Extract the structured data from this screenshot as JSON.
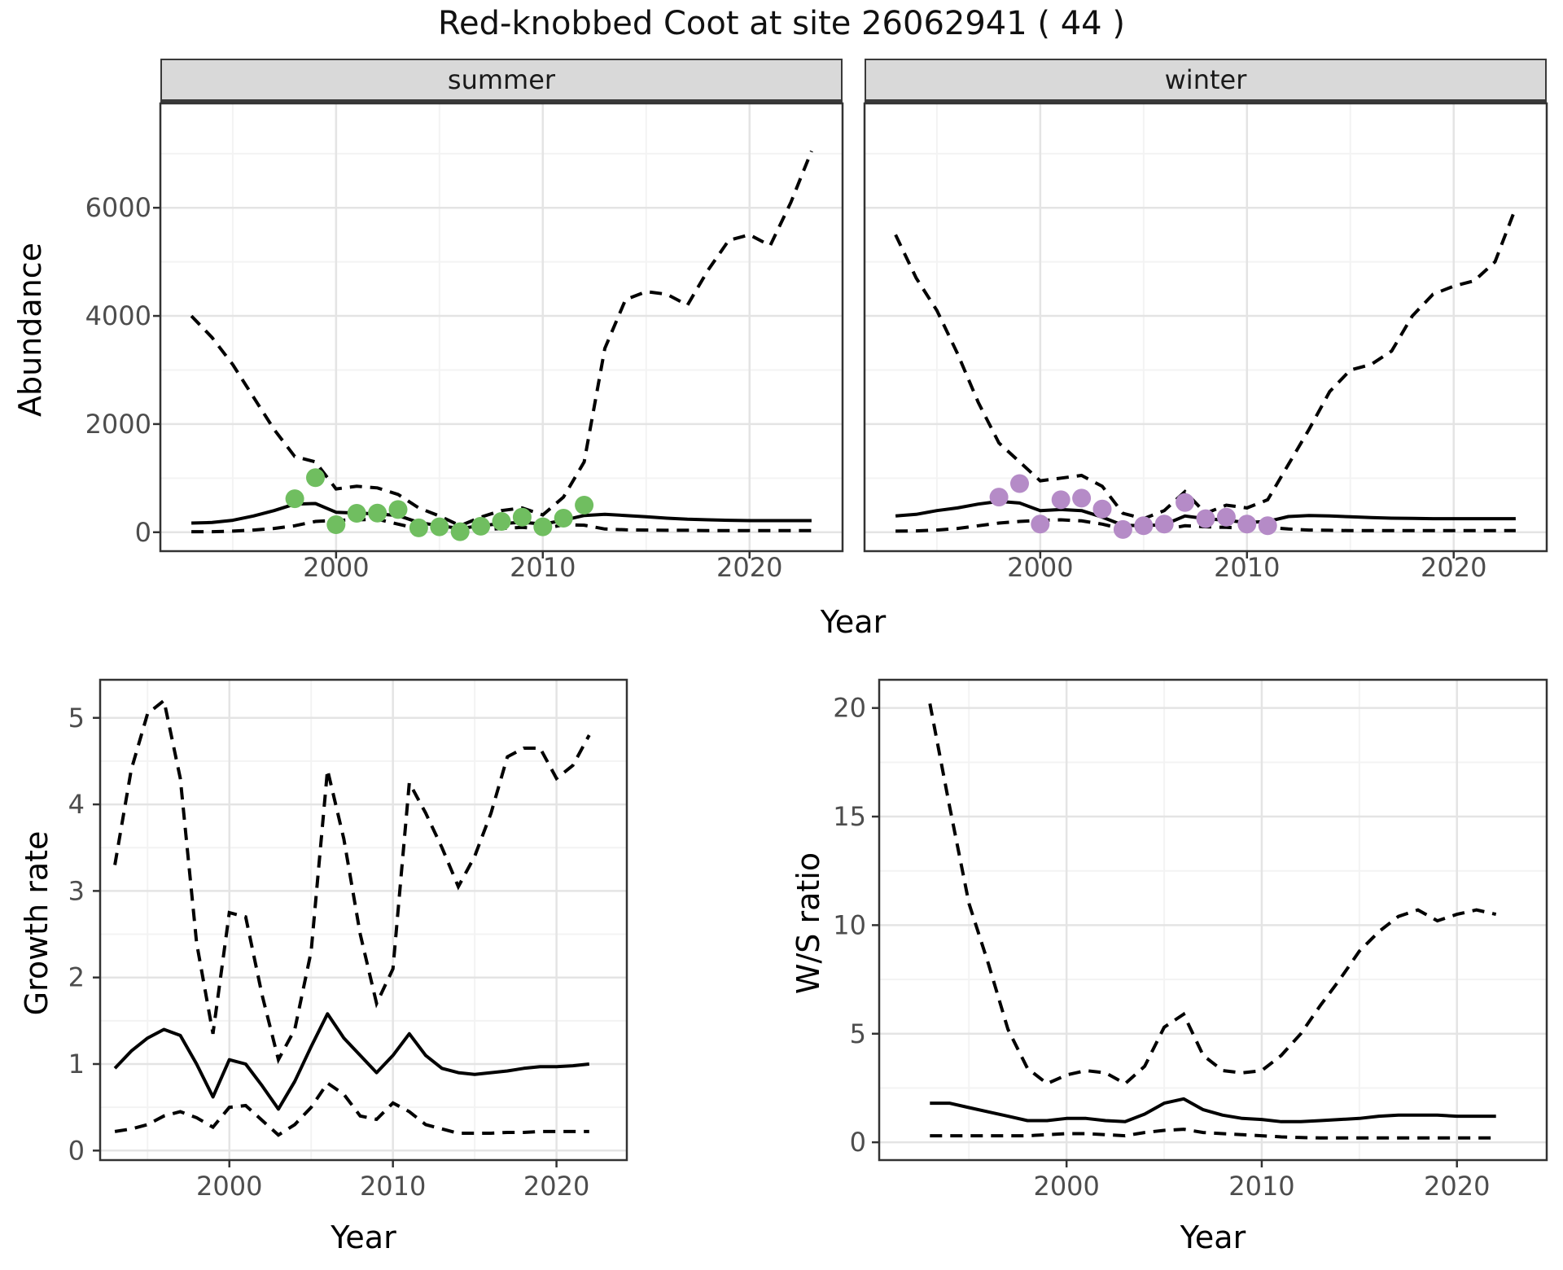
{
  "title": "Red-knobbed Coot at site 26062941 ( 44 )",
  "facets": {
    "summer": "summer",
    "winter": "winter"
  },
  "axis_titles": {
    "abundance": "Abundance",
    "year_top": "Year",
    "growth_rate": "Growth rate",
    "ws_ratio": "W/S ratio",
    "year_bottom_left": "Year",
    "year_bottom_right": "Year"
  },
  "colors": {
    "summer_point": "#70BE60",
    "winter_point": "#B58BC7",
    "line": "#000000",
    "grid_major": "#E4E4E4",
    "grid_minor": "#F3F3F3",
    "panel_border": "#333333",
    "strip_bg": "#D9D9D9",
    "tick_label": "#4D4D4D"
  },
  "chart_data": [
    {
      "id": "abundance_summer",
      "type": "line",
      "facet": "summer",
      "xlabel": "Year",
      "ylabel": "Abundance",
      "xlim": [
        1991.5,
        2024.5
      ],
      "ylim": [
        -350,
        7930
      ],
      "grid": true,
      "xticks": {
        "major": [
          2000,
          2010,
          2020
        ],
        "minor": [
          1995,
          2005,
          2015
        ]
      },
      "yticks": {
        "major": [
          0,
          2000,
          4000,
          6000
        ],
        "minor": [
          1000,
          3000,
          5000,
          7000
        ]
      },
      "x": [
        1993,
        1994,
        1995,
        1996,
        1997,
        1998,
        1999,
        2000,
        2001,
        2002,
        2003,
        2004,
        2005,
        2006,
        2007,
        2008,
        2009,
        2010,
        2011,
        2012,
        2013,
        2014,
        2015,
        2016,
        2017,
        2018,
        2019,
        2020,
        2021,
        2022,
        2023
      ],
      "series": [
        {
          "name": "upper_ci",
          "style": "dashed",
          "values": [
            4000,
            3600,
            3100,
            2500,
            1900,
            1400,
            1300,
            800,
            850,
            820,
            700,
            450,
            300,
            120,
            280,
            400,
            450,
            320,
            650,
            1300,
            3400,
            4300,
            4450,
            4400,
            4200,
            4850,
            5400,
            5500,
            5300,
            6100,
            7050
          ]
        },
        {
          "name": "estimate",
          "style": "solid",
          "values": [
            170,
            180,
            220,
            300,
            400,
            520,
            530,
            370,
            355,
            340,
            310,
            180,
            120,
            70,
            120,
            160,
            185,
            150,
            220,
            310,
            330,
            310,
            285,
            260,
            240,
            230,
            220,
            215,
            215,
            215,
            215
          ]
        },
        {
          "name": "lower_ci",
          "style": "dashed",
          "values": [
            10,
            10,
            20,
            40,
            70,
            120,
            200,
            220,
            230,
            240,
            150,
            60,
            25,
            10,
            40,
            70,
            90,
            60,
            140,
            130,
            60,
            45,
            40,
            35,
            35,
            30,
            30,
            30,
            30,
            30,
            30
          ]
        }
      ],
      "points": {
        "name": "observed_counts_summer",
        "color_key": "summer_point",
        "x": [
          1998,
          1999,
          2000,
          2001,
          2002,
          2003,
          2004,
          2005,
          2006,
          2007,
          2008,
          2009,
          2010,
          2011,
          2012
        ],
        "y": [
          620,
          1010,
          140,
          350,
          355,
          420,
          80,
          100,
          10,
          110,
          200,
          280,
          100,
          260,
          500
        ]
      }
    },
    {
      "id": "abundance_winter",
      "type": "line",
      "facet": "winter",
      "xlabel": "Year",
      "ylabel": "Abundance",
      "xlim": [
        1991.5,
        2024.5
      ],
      "ylim": [
        -350,
        7930
      ],
      "grid": true,
      "xticks": {
        "major": [
          2000,
          2010,
          2020
        ],
        "minor": [
          1995,
          2005,
          2015
        ]
      },
      "yticks": {
        "major": [
          0,
          2000,
          4000,
          6000
        ],
        "minor": [
          1000,
          3000,
          5000,
          7000
        ]
      },
      "x": [
        1993,
        1994,
        1995,
        1996,
        1997,
        1998,
        1999,
        2000,
        2001,
        2002,
        2003,
        2004,
        2005,
        2006,
        2007,
        2008,
        2009,
        2010,
        2011,
        2012,
        2013,
        2014,
        2015,
        2016,
        2017,
        2018,
        2019,
        2020,
        2021,
        2022,
        2023
      ],
      "series": [
        {
          "name": "upper_ci",
          "style": "dashed",
          "values": [
            5500,
            4700,
            4100,
            3300,
            2400,
            1650,
            1300,
            950,
            1000,
            1050,
            850,
            350,
            250,
            400,
            750,
            350,
            500,
            450,
            600,
            1250,
            1900,
            2600,
            3000,
            3100,
            3350,
            4000,
            4400,
            4550,
            4650,
            5000,
            6000
          ]
        },
        {
          "name": "estimate",
          "style": "solid",
          "values": [
            300,
            330,
            400,
            450,
            520,
            570,
            540,
            400,
            420,
            400,
            280,
            130,
            120,
            140,
            300,
            250,
            220,
            180,
            200,
            290,
            310,
            300,
            285,
            270,
            260,
            255,
            250,
            250,
            250,
            250,
            250
          ]
        },
        {
          "name": "lower_ci",
          "style": "dashed",
          "values": [
            20,
            25,
            40,
            70,
            120,
            170,
            200,
            220,
            230,
            210,
            150,
            60,
            40,
            50,
            120,
            100,
            90,
            70,
            90,
            60,
            40,
            35,
            30,
            30,
            30,
            30,
            30,
            30,
            30,
            30,
            30
          ]
        }
      ],
      "points": {
        "name": "observed_counts_winter",
        "color_key": "winter_point",
        "x": [
          1998,
          1999,
          2000,
          2001,
          2002,
          2003,
          2004,
          2005,
          2006,
          2007,
          2008,
          2009,
          2010,
          2011
        ],
        "y": [
          650,
          900,
          150,
          600,
          630,
          430,
          50,
          120,
          150,
          550,
          250,
          280,
          150,
          120
        ]
      }
    },
    {
      "id": "growth_rate",
      "type": "line",
      "xlabel": "Year",
      "ylabel": "Growth rate",
      "xlim": [
        1992.1,
        2024.3
      ],
      "ylim": [
        -0.11,
        5.44
      ],
      "grid": true,
      "xticks": {
        "major": [
          2000,
          2010,
          2020
        ],
        "minor": [
          1995,
          2005,
          2015
        ]
      },
      "yticks": {
        "major": [
          0,
          1,
          2,
          3,
          4,
          5
        ],
        "minor": [
          0.5,
          1.5,
          2.5,
          3.5,
          4.5
        ]
      },
      "x": [
        1993,
        1994,
        1995,
        1996,
        1997,
        1998,
        1999,
        2000,
        2001,
        2002,
        2003,
        2004,
        2005,
        2006,
        2007,
        2008,
        2009,
        2010,
        2011,
        2012,
        2013,
        2014,
        2015,
        2016,
        2017,
        2018,
        2019,
        2020,
        2021,
        2022
      ],
      "series": [
        {
          "name": "upper_ci",
          "style": "dashed",
          "values": [
            3.3,
            4.4,
            5.05,
            5.2,
            4.3,
            2.4,
            1.35,
            2.75,
            2.7,
            1.8,
            1.05,
            1.4,
            2.3,
            4.4,
            3.6,
            2.5,
            1.7,
            2.1,
            4.25,
            3.9,
            3.5,
            3.05,
            3.4,
            3.9,
            4.55,
            4.65,
            4.65,
            4.3,
            4.45,
            4.8
          ]
        },
        {
          "name": "estimate",
          "style": "solid",
          "values": [
            0.95,
            1.15,
            1.3,
            1.4,
            1.33,
            1.0,
            0.62,
            1.05,
            1.0,
            0.75,
            0.48,
            0.8,
            1.2,
            1.58,
            1.3,
            1.1,
            0.9,
            1.1,
            1.35,
            1.1,
            0.95,
            0.9,
            0.88,
            0.9,
            0.92,
            0.95,
            0.97,
            0.97,
            0.98,
            1.0
          ]
        },
        {
          "name": "lower_ci",
          "style": "dashed",
          "values": [
            0.22,
            0.25,
            0.3,
            0.4,
            0.45,
            0.38,
            0.27,
            0.5,
            0.52,
            0.35,
            0.18,
            0.3,
            0.5,
            0.78,
            0.65,
            0.4,
            0.36,
            0.55,
            0.45,
            0.3,
            0.25,
            0.2,
            0.2,
            0.2,
            0.21,
            0.21,
            0.22,
            0.22,
            0.22,
            0.22
          ]
        }
      ]
    },
    {
      "id": "ws_ratio",
      "type": "line",
      "xlabel": "Year",
      "ylabel": "W/S ratio",
      "xlim": [
        1990.4,
        2024.6
      ],
      "ylim": [
        -0.82,
        21.3
      ],
      "grid": true,
      "xticks": {
        "major": [
          2000,
          2010,
          2020
        ],
        "minor": [
          1995,
          2005,
          2015
        ]
      },
      "yticks": {
        "major": [
          0,
          5,
          10,
          15,
          20
        ],
        "minor": [
          2.5,
          7.5,
          12.5,
          17.5
        ]
      },
      "x": [
        1993,
        1994,
        1995,
        1996,
        1997,
        1998,
        1999,
        2000,
        2001,
        2002,
        2003,
        2004,
        2005,
        2006,
        2007,
        2008,
        2009,
        2010,
        2011,
        2012,
        2013,
        2014,
        2015,
        2016,
        2017,
        2018,
        2019,
        2020,
        2021,
        2022
      ],
      "series": [
        {
          "name": "upper_ci",
          "style": "dashed",
          "values": [
            20.2,
            15.5,
            11.0,
            8.2,
            5.2,
            3.4,
            2.7,
            3.1,
            3.3,
            3.2,
            2.7,
            3.5,
            5.3,
            5.9,
            4.0,
            3.3,
            3.2,
            3.3,
            4.0,
            5.0,
            6.3,
            7.5,
            8.8,
            9.7,
            10.4,
            10.7,
            10.2,
            10.5,
            10.7,
            10.5
          ]
        },
        {
          "name": "estimate",
          "style": "solid",
          "values": [
            1.8,
            1.8,
            1.6,
            1.4,
            1.2,
            1.0,
            1.0,
            1.1,
            1.1,
            1.0,
            0.95,
            1.3,
            1.8,
            2.0,
            1.5,
            1.25,
            1.1,
            1.05,
            0.95,
            0.95,
            1.0,
            1.05,
            1.1,
            1.2,
            1.25,
            1.25,
            1.25,
            1.2,
            1.2,
            1.2
          ]
        },
        {
          "name": "lower_ci",
          "style": "dashed",
          "values": [
            0.3,
            0.3,
            0.3,
            0.3,
            0.3,
            0.3,
            0.35,
            0.4,
            0.4,
            0.35,
            0.3,
            0.45,
            0.55,
            0.6,
            0.45,
            0.4,
            0.35,
            0.3,
            0.25,
            0.22,
            0.2,
            0.2,
            0.2,
            0.2,
            0.2,
            0.2,
            0.2,
            0.2,
            0.2,
            0.2
          ]
        }
      ]
    }
  ]
}
